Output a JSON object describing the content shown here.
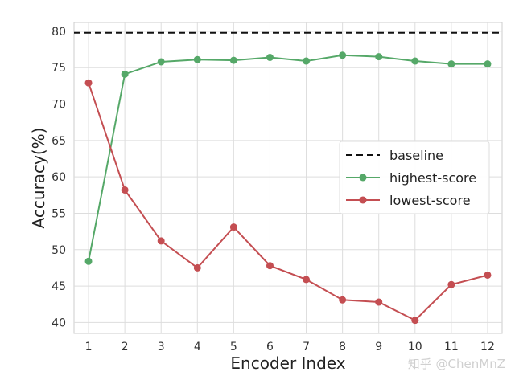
{
  "chart_data": {
    "type": "line",
    "title": "",
    "xlabel": "Encoder Index",
    "ylabel": "Accuracy(%)",
    "x": [
      1,
      2,
      3,
      4,
      5,
      6,
      7,
      8,
      9,
      10,
      11,
      12
    ],
    "xlim": [
      0.6,
      12.4
    ],
    "ylim": [
      38.5,
      81.2
    ],
    "yticks": [
      40,
      45,
      50,
      55,
      60,
      65,
      70,
      75,
      80
    ],
    "grid": true,
    "legend_position": "center-right",
    "baseline": {
      "name": "baseline",
      "value": 79.8,
      "color": "#111111",
      "style": "dashed"
    },
    "series": [
      {
        "name": "highest-score",
        "color": "#55a868",
        "values": [
          48.4,
          74.1,
          75.8,
          76.1,
          76.0,
          76.4,
          75.9,
          76.7,
          76.5,
          75.9,
          75.5,
          75.5
        ]
      },
      {
        "name": "lowest-score",
        "color": "#c44e52",
        "values": [
          72.9,
          58.2,
          51.2,
          47.5,
          53.1,
          47.8,
          45.9,
          43.1,
          42.8,
          40.3,
          45.2,
          46.5
        ]
      }
    ]
  },
  "watermark": {
    "text": "知乎 @ChenMnZ"
  }
}
